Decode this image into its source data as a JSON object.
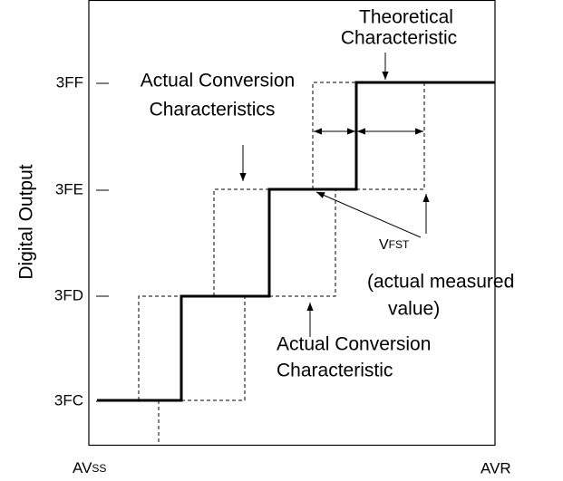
{
  "y_labels": [
    "3FF",
    "3FE",
    "3FD",
    "3FC"
  ],
  "y_axis_label": "Digital Output",
  "x_labels": {
    "left": {
      "main": "AV",
      "sub": "SS"
    },
    "right": "AVR"
  },
  "annotations": {
    "theoretical": [
      "Theoretical",
      "Characteristic"
    ],
    "actual_top": [
      "Actual Conversion",
      "Characteristics"
    ],
    "vfst": {
      "main": "V",
      "sub": "FST",
      "lines": [
        "(actual measured",
        "value)"
      ]
    },
    "actual_bottom": [
      "Actual Conversion",
      "Characteristic"
    ]
  }
}
